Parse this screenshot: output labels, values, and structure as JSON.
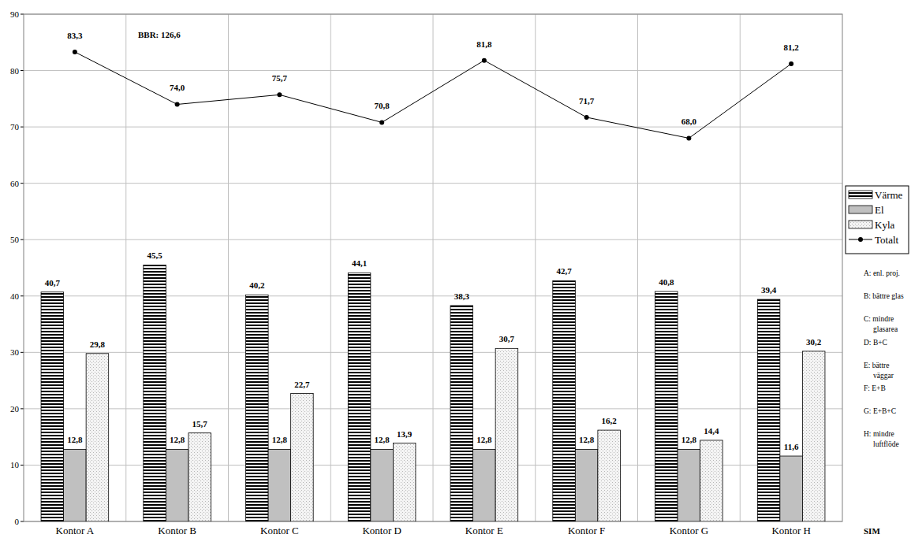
{
  "chart_data": {
    "type": "bar",
    "categories": [
      "Kontor A",
      "Kontor B",
      "Kontor C",
      "Kontor D",
      "Kontor E",
      "Kontor F",
      "Kontor G",
      "Kontor H"
    ],
    "series": [
      {
        "name": "Värme",
        "type": "bar",
        "color": "#000000",
        "values": [
          40.7,
          45.5,
          40.2,
          44.1,
          38.3,
          42.7,
          40.8,
          39.4
        ],
        "value_labels": [
          "40,7",
          "45,5",
          "40,2",
          "44,1",
          "38,3",
          "42,7",
          "40,8",
          "39,4"
        ]
      },
      {
        "name": "El",
        "type": "bar",
        "color": "#c0c0c0",
        "values": [
          12.8,
          12.8,
          12.8,
          12.8,
          12.8,
          12.8,
          12.8,
          11.6
        ],
        "value_labels": [
          "12,8",
          "12,8",
          "12,8",
          "12,8",
          "12,8",
          "12,8",
          "12,8",
          "11,6"
        ]
      },
      {
        "name": "Kyla",
        "type": "bar",
        "color": "#b8b8b8",
        "values": [
          29.8,
          15.7,
          22.7,
          13.9,
          30.7,
          16.2,
          14.4,
          30.2
        ],
        "value_labels": [
          "29,8",
          "15,7",
          "22,7",
          "13,9",
          "30,7",
          "16,2",
          "14,4",
          "30,2"
        ]
      },
      {
        "name": "Totalt",
        "type": "line",
        "color": "#000000",
        "marker": "circle",
        "line_style": "solid",
        "values": [
          83.3,
          74.0,
          75.7,
          70.8,
          81.8,
          71.7,
          68.0,
          81.2
        ],
        "value_labels": [
          "83,3",
          "74,0",
          "75,7",
          "70,8",
          "81,8",
          "71,7",
          "68,0",
          "81,2"
        ]
      }
    ],
    "ylim": [
      0,
      90
    ],
    "yticks": [
      0,
      10,
      20,
      30,
      40,
      50,
      60,
      70,
      80,
      90
    ],
    "grid": true,
    "legend": "right",
    "data_labels": true,
    "annotations": [
      "BBR: 126,6",
      "A: enl. proj.",
      "B: bättre glas",
      "C: mindre glasarea",
      "D: B+C",
      "E: bättre väggar",
      "F: E+B",
      "G: E+B+C",
      "H: mindre luftflöde",
      "SIM"
    ]
  }
}
